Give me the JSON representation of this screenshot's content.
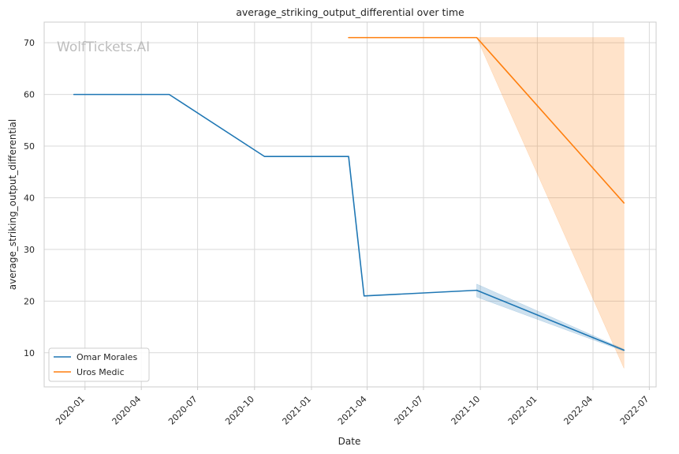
{
  "chart_data": {
    "type": "line",
    "title": "average_striking_output_differential over time",
    "xlabel": "Date",
    "ylabel": "average_striking_output_differential",
    "watermark": "WolfTickets.AI",
    "xlim": [
      "2019-10-27",
      "2022-07-12"
    ],
    "ylim": [
      3.4,
      74.0
    ],
    "x_ticks": [
      "2020-01",
      "2020-04",
      "2020-07",
      "2020-10",
      "2021-01",
      "2021-04",
      "2021-07",
      "2021-10",
      "2022-01",
      "2022-04",
      "2022-07"
    ],
    "y_ticks": [
      10,
      20,
      30,
      40,
      50,
      60,
      70
    ],
    "grid": true,
    "legend_position": "lower-left",
    "series": [
      {
        "name": "Omar Morales",
        "color": "#1f77b4",
        "points": [
          {
            "x": "2019-12-14",
            "y": 60
          },
          {
            "x": "2020-05-16",
            "y": 60
          },
          {
            "x": "2020-10-17",
            "y": 48
          },
          {
            "x": "2021-03-02",
            "y": 48
          },
          {
            "x": "2021-03-27",
            "y": 21
          },
          {
            "x": "2021-09-25",
            "y": 22.1
          },
          {
            "x": "2022-05-21",
            "y": 10.5
          }
        ],
        "band": [
          {
            "x": "2021-09-25",
            "low": 20.8,
            "high": 23.3
          },
          {
            "x": "2022-05-21",
            "low": 10.3,
            "high": 10.7
          }
        ]
      },
      {
        "name": "Uros Medic",
        "color": "#ff7f0e",
        "points": [
          {
            "x": "2021-03-02",
            "y": 71
          },
          {
            "x": "2021-09-25",
            "y": 71
          },
          {
            "x": "2022-05-21",
            "y": 39
          }
        ],
        "band": [
          {
            "x": "2021-09-25",
            "low": 71,
            "high": 71
          },
          {
            "x": "2022-05-21",
            "low": 7,
            "high": 71
          }
        ]
      }
    ]
  }
}
